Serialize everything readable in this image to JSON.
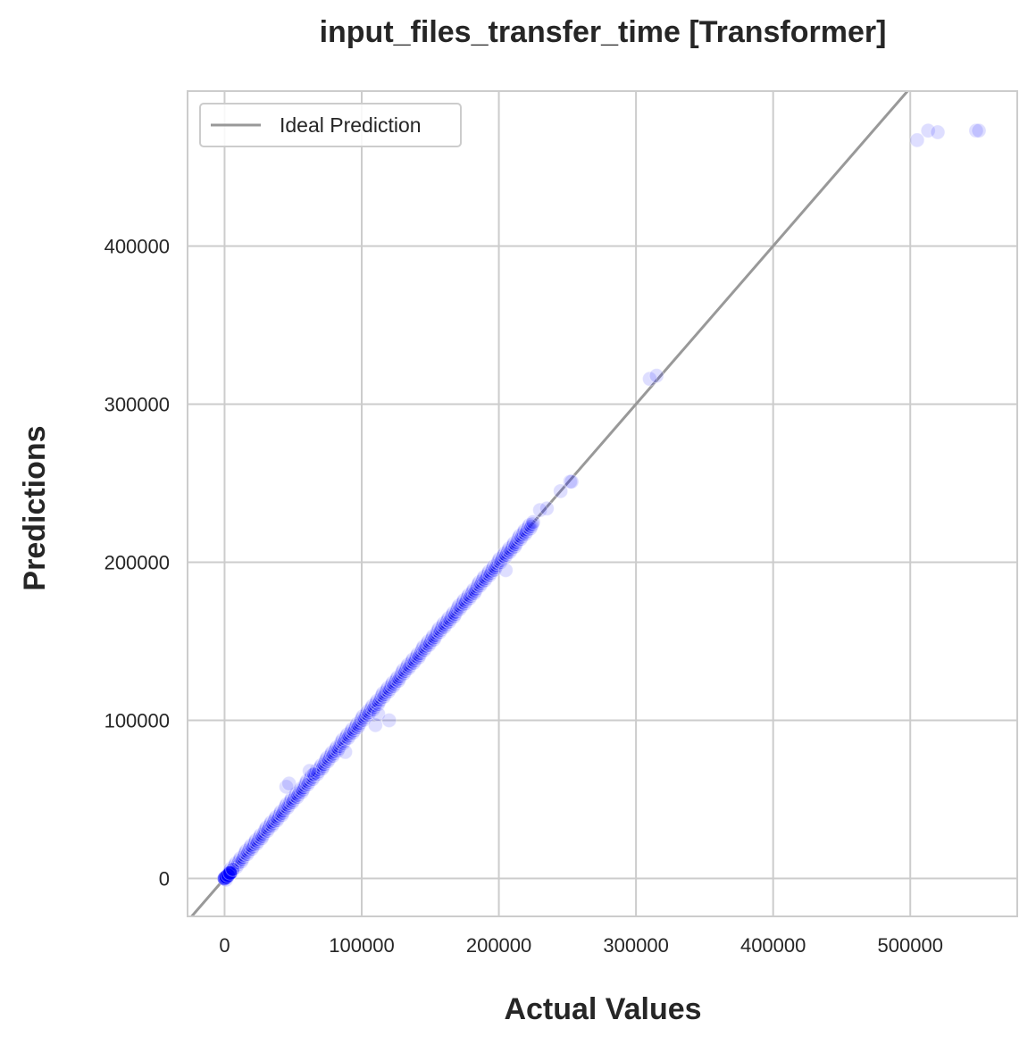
{
  "chart_data": {
    "type": "scatter",
    "title": "input_files_transfer_time [Transformer]",
    "xlabel": "Actual Values",
    "ylabel": "Predictions",
    "xlim": [
      -27000,
      578000
    ],
    "ylim": [
      -24000,
      498000
    ],
    "xticks": [
      0,
      100000,
      200000,
      300000,
      400000,
      500000
    ],
    "yticks": [
      0,
      100000,
      200000,
      300000,
      400000
    ],
    "xtick_labels": [
      "0",
      "100000",
      "200000",
      "300000",
      "400000",
      "500000"
    ],
    "ytick_labels": [
      "0",
      "100000",
      "200000",
      "300000",
      "400000"
    ],
    "grid": true,
    "legend": {
      "position": "top-left",
      "entries": [
        "Ideal Prediction"
      ]
    },
    "colors": {
      "points": "#0000ff",
      "ideal_line": "#999999",
      "grid": "#cccccc"
    },
    "ideal_line": {
      "label": "Ideal Prediction",
      "from": [
        -30000,
        -30000
      ],
      "to": [
        600000,
        600000
      ]
    },
    "dense_segment": {
      "x_start": 1000,
      "x_end": 225000,
      "count": 320,
      "jitter": 1800
    },
    "points": [
      [
        0,
        0
      ],
      [
        500,
        400
      ],
      [
        1200,
        900
      ],
      [
        2500,
        2000
      ],
      [
        4000,
        3500
      ],
      [
        6000,
        5800
      ],
      [
        45000,
        58000
      ],
      [
        47000,
        60000
      ],
      [
        62000,
        68000
      ],
      [
        65000,
        66000
      ],
      [
        88000,
        80000
      ],
      [
        110000,
        97000
      ],
      [
        112000,
        104000
      ],
      [
        120000,
        100000
      ],
      [
        205000,
        195000
      ],
      [
        230000,
        233000
      ],
      [
        235000,
        234000
      ],
      [
        245000,
        245000
      ],
      [
        252000,
        251000
      ],
      [
        253000,
        251000
      ],
      [
        310000,
        316000
      ],
      [
        315000,
        318000
      ],
      [
        505000,
        467000
      ],
      [
        513000,
        473000
      ],
      [
        520000,
        472000
      ],
      [
        548000,
        473000
      ],
      [
        550000,
        473000
      ]
    ]
  }
}
